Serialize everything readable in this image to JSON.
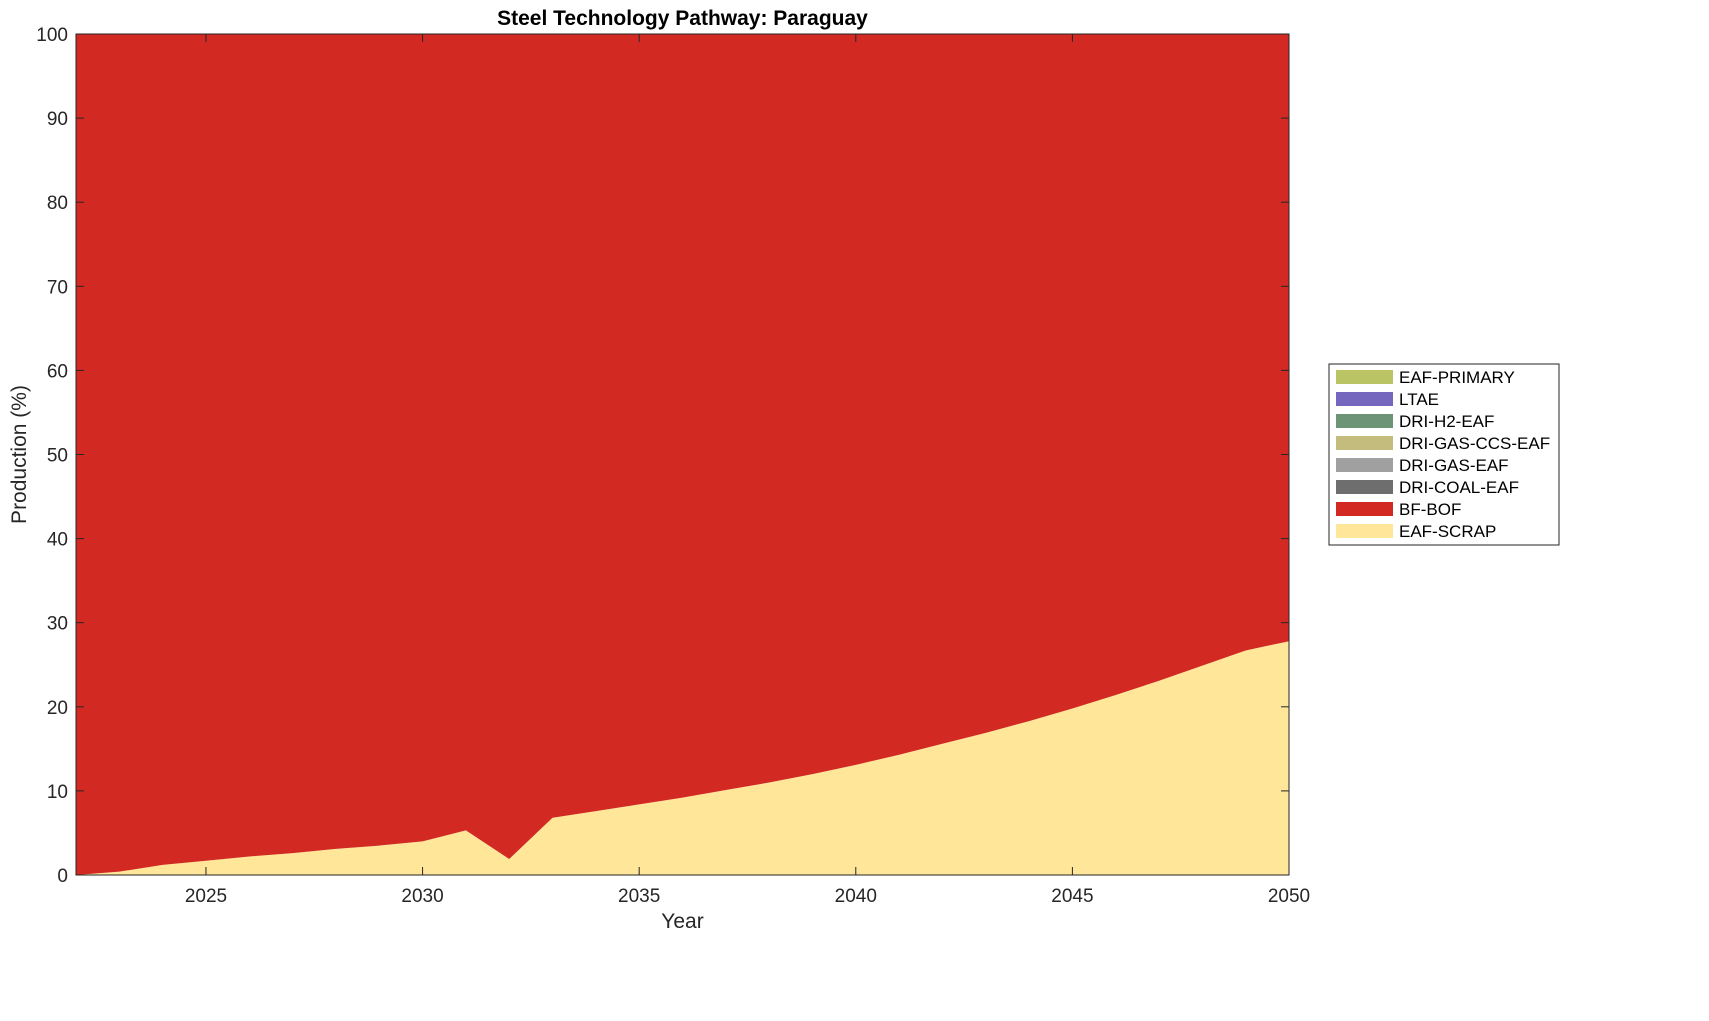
{
  "chart_data": {
    "type": "area",
    "stacked": true,
    "title": "Steel Technology Pathway: Paraguay",
    "xlabel": "Year",
    "ylabel": "Production (%)",
    "xlim": [
      2022,
      2050
    ],
    "ylim": [
      0,
      100
    ],
    "xticks": [
      2025,
      2030,
      2035,
      2040,
      2045,
      2050
    ],
    "yticks": [
      0,
      10,
      20,
      30,
      40,
      50,
      60,
      70,
      80,
      90,
      100
    ],
    "grid": false,
    "legend_position": "right",
    "x": [
      2022,
      2023,
      2024,
      2025,
      2026,
      2027,
      2028,
      2029,
      2030,
      2031,
      2032,
      2033,
      2034,
      2035,
      2036,
      2037,
      2038,
      2039,
      2040,
      2041,
      2042,
      2043,
      2044,
      2045,
      2046,
      2047,
      2048,
      2049,
      2050
    ],
    "series": [
      {
        "name": "EAF-SCRAP",
        "color": "#FFE699",
        "values": [
          0,
          0.4,
          1.2,
          1.7,
          2.2,
          2.6,
          3.1,
          3.5,
          4.0,
          5.3,
          1.9,
          6.8,
          7.6,
          8.4,
          9.2,
          10.1,
          11.0,
          12.0,
          13.1,
          14.3,
          15.6,
          16.9,
          18.3,
          19.8,
          21.4,
          23.1,
          24.9,
          26.7,
          27.8
        ]
      },
      {
        "name": "BF-BOF",
        "color": "#D22A23",
        "values": [
          100,
          99.6,
          98.8,
          98.3,
          97.8,
          97.4,
          96.9,
          96.5,
          96.0,
          94.7,
          98.1,
          93.2,
          92.4,
          91.6,
          90.8,
          89.9,
          89.0,
          88.0,
          86.9,
          85.7,
          84.4,
          83.1,
          81.7,
          80.2,
          78.6,
          76.9,
          75.1,
          73.3,
          72.2
        ]
      },
      {
        "name": "DRI-COAL-EAF",
        "color": "#6E6E6E",
        "values": [
          0,
          0,
          0,
          0,
          0,
          0,
          0,
          0,
          0,
          0,
          0,
          0,
          0,
          0,
          0,
          0,
          0,
          0,
          0,
          0,
          0,
          0,
          0,
          0,
          0,
          0,
          0,
          0,
          0
        ]
      },
      {
        "name": "DRI-GAS-EAF",
        "color": "#A0A0A0",
        "values": [
          0,
          0,
          0,
          0,
          0,
          0,
          0,
          0,
          0,
          0,
          0,
          0,
          0,
          0,
          0,
          0,
          0,
          0,
          0,
          0,
          0,
          0,
          0,
          0,
          0,
          0,
          0,
          0,
          0
        ]
      },
      {
        "name": "DRI-GAS-CCS-EAF",
        "color": "#C4BC7C",
        "values": [
          0,
          0,
          0,
          0,
          0,
          0,
          0,
          0,
          0,
          0,
          0,
          0,
          0,
          0,
          0,
          0,
          0,
          0,
          0,
          0,
          0,
          0,
          0,
          0,
          0,
          0,
          0,
          0,
          0
        ]
      },
      {
        "name": "DRI-H2-EAF",
        "color": "#6E9478",
        "values": [
          0,
          0,
          0,
          0,
          0,
          0,
          0,
          0,
          0,
          0,
          0,
          0,
          0,
          0,
          0,
          0,
          0,
          0,
          0,
          0,
          0,
          0,
          0,
          0,
          0,
          0,
          0,
          0,
          0
        ]
      },
      {
        "name": "LTAE",
        "color": "#7566BE",
        "values": [
          0,
          0,
          0,
          0,
          0,
          0,
          0,
          0,
          0,
          0,
          0,
          0,
          0,
          0,
          0,
          0,
          0,
          0,
          0,
          0,
          0,
          0,
          0,
          0,
          0,
          0,
          0,
          0,
          0
        ]
      },
      {
        "name": "EAF-PRIMARY",
        "color": "#BAC464",
        "values": [
          0,
          0,
          0,
          0,
          0,
          0,
          0,
          0,
          0,
          0,
          0,
          0,
          0,
          0,
          0,
          0,
          0,
          0,
          0,
          0,
          0,
          0,
          0,
          0,
          0,
          0,
          0,
          0,
          0
        ]
      }
    ],
    "legend_order": [
      "EAF-PRIMARY",
      "LTAE",
      "DRI-H2-EAF",
      "DRI-GAS-CCS-EAF",
      "DRI-GAS-EAF",
      "DRI-COAL-EAF",
      "BF-BOF",
      "EAF-SCRAP"
    ]
  }
}
